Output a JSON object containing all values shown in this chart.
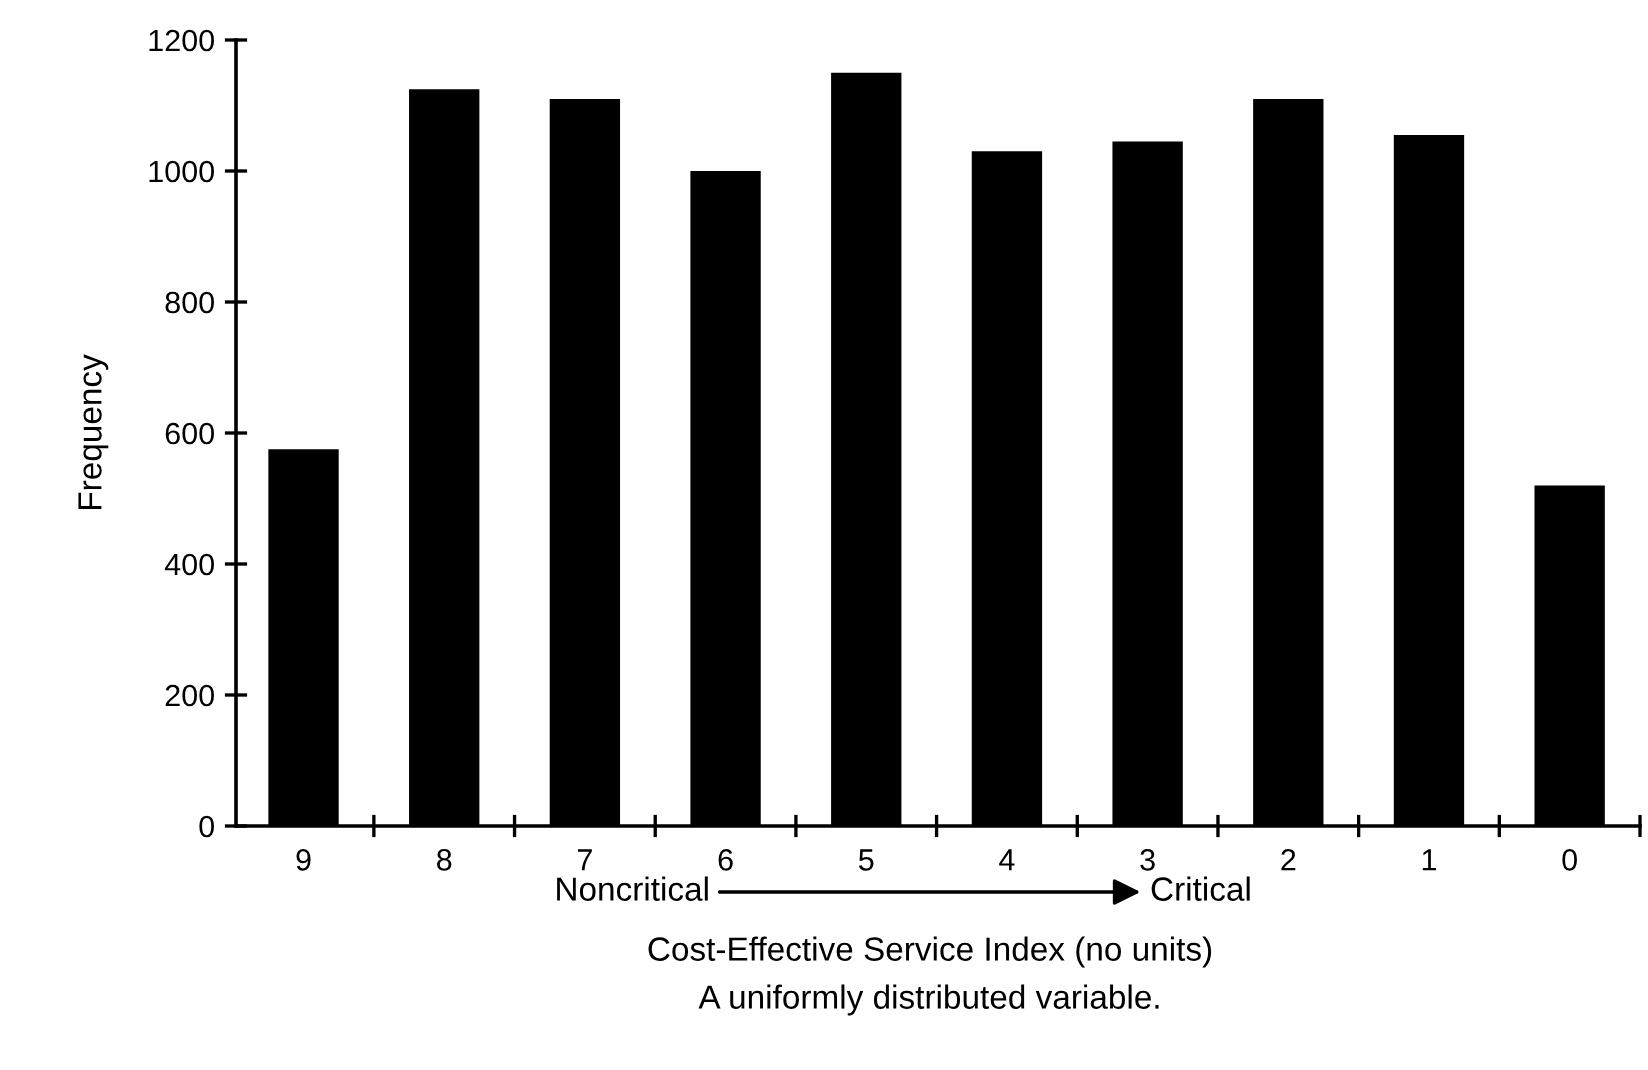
{
  "chart_data": {
    "type": "bar",
    "categories": [
      "9",
      "8",
      "7",
      "6",
      "5",
      "4",
      "3",
      "2",
      "1",
      "0"
    ],
    "values": [
      575,
      1125,
      1110,
      1000,
      1150,
      1030,
      1045,
      1110,
      1055,
      520
    ],
    "color": "#000000",
    "ylabel": "Frequency",
    "xlabel": "Cost-Effective Service Index (no units)",
    "annotations": [
      "Noncritical",
      "Critical",
      "A uniformly distributed variable."
    ],
    "ylim": [
      0,
      1200
    ],
    "yticks": [
      0,
      200,
      400,
      600,
      800,
      1000,
      1200
    ],
    "grid": false,
    "legend": false
  }
}
